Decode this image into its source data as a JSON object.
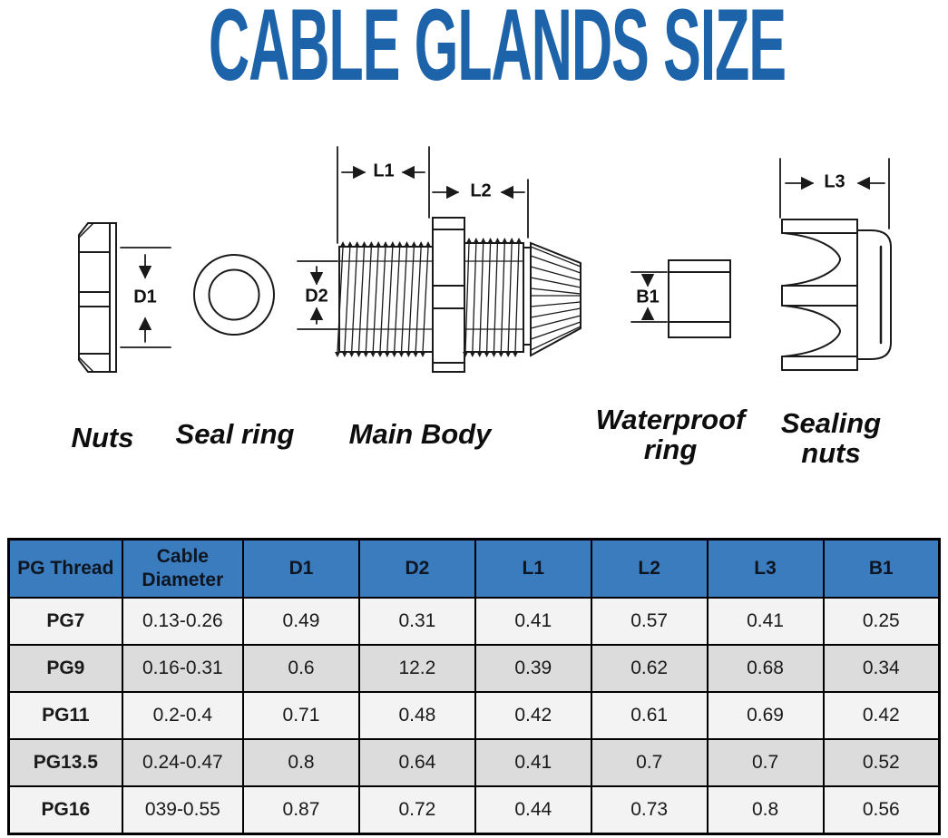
{
  "page": {
    "title": "CABLE GLANDS SIZE"
  },
  "colors": {
    "title_blue": "#1d63aa",
    "table_header_bg": "#3b7cbf",
    "row_light_bg": "#f3f3f3",
    "row_alt_bg": "#dcdcdc",
    "line_color": "#1a1a1a"
  },
  "diagram": {
    "dimensions": {
      "d1": "D1",
      "d2": "D2",
      "l1": "L1",
      "l2": "L2",
      "l3": "L3",
      "b1": "B1"
    },
    "parts": [
      {
        "label": "Nuts"
      },
      {
        "label": "Seal ring"
      },
      {
        "label": "Main Body"
      },
      {
        "label": "Waterproof ring"
      },
      {
        "label": "Sealing nuts"
      }
    ]
  },
  "table": {
    "columns": [
      "PG Thread",
      "Cable Diameter",
      "D1",
      "D2",
      "L1",
      "L2",
      "L3",
      "B1"
    ],
    "rows": [
      [
        "PG7",
        "0.13-0.26",
        "0.49",
        "0.31",
        "0.41",
        "0.57",
        "0.41",
        "0.25"
      ],
      [
        "PG9",
        "0.16-0.31",
        "0.6",
        "12.2",
        "0.39",
        "0.62",
        "0.68",
        "0.34"
      ],
      [
        "PG11",
        "0.2-0.4",
        "0.71",
        "0.48",
        "0.42",
        "0.61",
        "0.69",
        "0.42"
      ],
      [
        "PG13.5",
        "0.24-0.47",
        "0.8",
        "0.64",
        "0.41",
        "0.7",
        "0.7",
        "0.52"
      ],
      [
        "PG16",
        "039-0.55",
        "0.87",
        "0.72",
        "0.44",
        "0.73",
        "0.8",
        "0.56"
      ]
    ]
  }
}
